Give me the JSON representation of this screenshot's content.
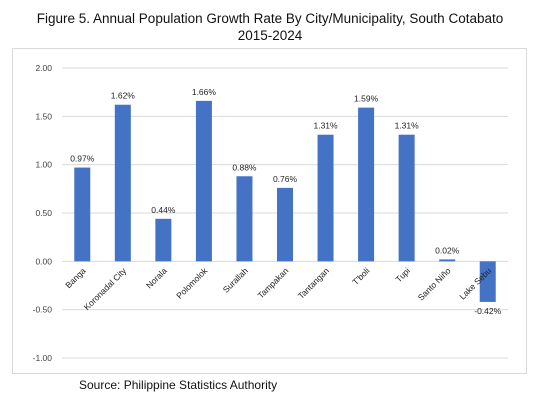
{
  "chart_data": {
    "type": "bar",
    "title_line1": "Figure 5. Annual Population Growth Rate By City/Municipality, South Cotabato",
    "title_line2": "2015-2024",
    "categories": [
      "Banga",
      "Koronadal City",
      "Norala",
      "Polomolok",
      "Surallah",
      "Tampakan",
      "Tantangan",
      "T'boli",
      "Tupi",
      "Santo Niño",
      "Lake Sebu"
    ],
    "values": [
      0.97,
      1.62,
      0.44,
      1.66,
      0.88,
      0.76,
      1.31,
      1.59,
      1.31,
      0.02,
      -0.42
    ],
    "data_labels": [
      "0.97%",
      "1.62%",
      "0.44%",
      "1.66%",
      "0.88%",
      "0.76%",
      "1.31%",
      "1.59%",
      "1.31%",
      "0.02%",
      "-0.42%"
    ],
    "y_ticks": [
      "2.00",
      "1.50",
      "1.00",
      "0.50",
      "0.00",
      "-0.50",
      "-1.00"
    ],
    "ylim": [
      -1.0,
      2.0
    ],
    "grid": true,
    "bar_color": "#4472C4"
  },
  "source": "Source: Philippine Statistics Authority"
}
